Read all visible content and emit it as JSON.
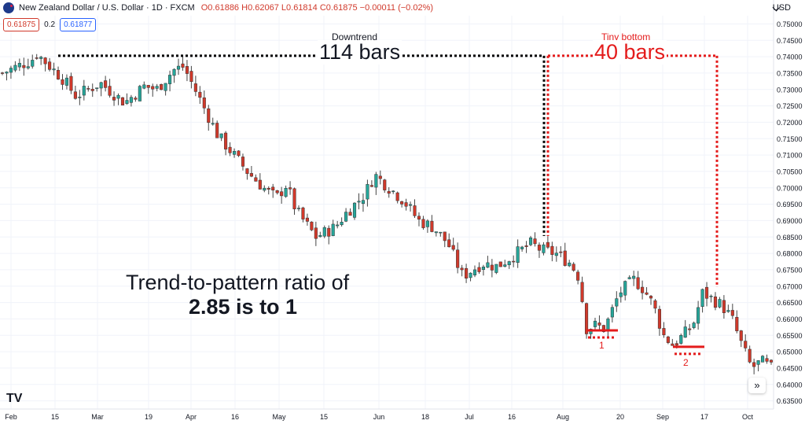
{
  "header": {
    "symbol": "New Zealand Dollar / U.S. Dollar · 1D · FXCM",
    "open": "O0.61886",
    "high": "H0.62067",
    "low": "L0.61814",
    "close": "C0.61875",
    "change": "−0.00011 (−0.02%)",
    "bid": "0.61875",
    "spread": "0.2",
    "ask": "0.61877"
  },
  "currency": "USD",
  "scroll_glyph": "»",
  "logo": "TV",
  "colors": {
    "up": "#26a69a",
    "down": "#d0392b",
    "annotation_red": "#e41b1b",
    "text": "#131722"
  },
  "annotations": {
    "downtrend_label": "Downtrend",
    "downtrend_bars": "114 bars",
    "bottom_label": "Tiny bottom",
    "bottom_bars": "40 bars",
    "ratio_line1": "Trend-to-pattern ratio of",
    "ratio_line2": "2.85 is to 1",
    "bottom1_num": "1",
    "bottom2_num": "2"
  },
  "chart_data": {
    "type": "candlestick",
    "title": "",
    "ylim": [
      0.6325,
      0.7525
    ],
    "y_ticks": [
      "0.75000",
      "0.74500",
      "0.74000",
      "0.73500",
      "0.73000",
      "0.72500",
      "0.72000",
      "0.71500",
      "0.71000",
      "0.70500",
      "0.70000",
      "0.69500",
      "0.69000",
      "0.68500",
      "0.68000",
      "0.67500",
      "0.67000",
      "0.66500",
      "0.66000",
      "0.65500",
      "0.65000",
      "0.64500",
      "0.64000",
      "0.63500"
    ],
    "x_ticks": [
      "Feb",
      "15",
      "Mar",
      "19",
      "Apr",
      "16",
      "May",
      "15",
      "Jun",
      "18",
      "Jul",
      "16",
      "Aug",
      "20",
      "Sep",
      "17",
      "Oct"
    ],
    "grid": true,
    "candles": {
      "count": 180,
      "close_path": [
        [
          0,
          0.735
        ],
        [
          12,
          0.739
        ],
        [
          14,
          0.741
        ],
        [
          25,
          0.733
        ],
        [
          30,
          0.728
        ],
        [
          40,
          0.732
        ],
        [
          50,
          0.726
        ],
        [
          58,
          0.731
        ],
        [
          63,
          0.73
        ],
        [
          70,
          0.736
        ],
        [
          74,
          0.737
        ],
        [
          80,
          0.728
        ],
        [
          88,
          0.716
        ],
        [
          100,
          0.705
        ],
        [
          108,
          0.699
        ],
        [
          112,
          0.697
        ],
        [
          116,
          0.701
        ],
        [
          120,
          0.693
        ],
        [
          128,
          0.685
        ],
        [
          136,
          0.688
        ],
        [
          140,
          0.692
        ],
        [
          148,
          0.698
        ],
        [
          152,
          0.704
        ],
        [
          158,
          0.7
        ],
        [
          164,
          0.696
        ],
        [
          170,
          0.69
        ],
        [
          176,
          0.688
        ],
        [
          182,
          0.683
        ],
        [
          188,
          0.673
        ],
        [
          196,
          0.677
        ],
        [
          202,
          0.676
        ],
        [
          210,
          0.68
        ],
        [
          216,
          0.683
        ],
        [
          220,
          0.681
        ],
        [
          226,
          0.68
        ],
        [
          232,
          0.677
        ],
        [
          236,
          0.672
        ],
        [
          238,
          0.657
        ],
        [
          242,
          0.658
        ],
        [
          246,
          0.657
        ],
        [
          252,
          0.668
        ],
        [
          258,
          0.672
        ],
        [
          262,
          0.669
        ],
        [
          266,
          0.664
        ],
        [
          270,
          0.655
        ],
        [
          274,
          0.652
        ],
        [
          278,
          0.655
        ],
        [
          282,
          0.658
        ],
        [
          286,
          0.668
        ],
        [
          290,
          0.666
        ],
        [
          294,
          0.664
        ],
        [
          298,
          0.66
        ],
        [
          302,
          0.652
        ],
        [
          306,
          0.645
        ],
        [
          310,
          0.647
        ],
        [
          314,
          0.645
        ]
      ],
      "total_x": 314
    },
    "downtrend": {
      "bars": 114,
      "level": 0.7403
    },
    "tiny_bottom": {
      "bars": 40,
      "level": 0.7403
    },
    "bottom_1_level": 0.6565,
    "bottom_2_level": 0.6515,
    "ratio": "2.85 : 1"
  }
}
